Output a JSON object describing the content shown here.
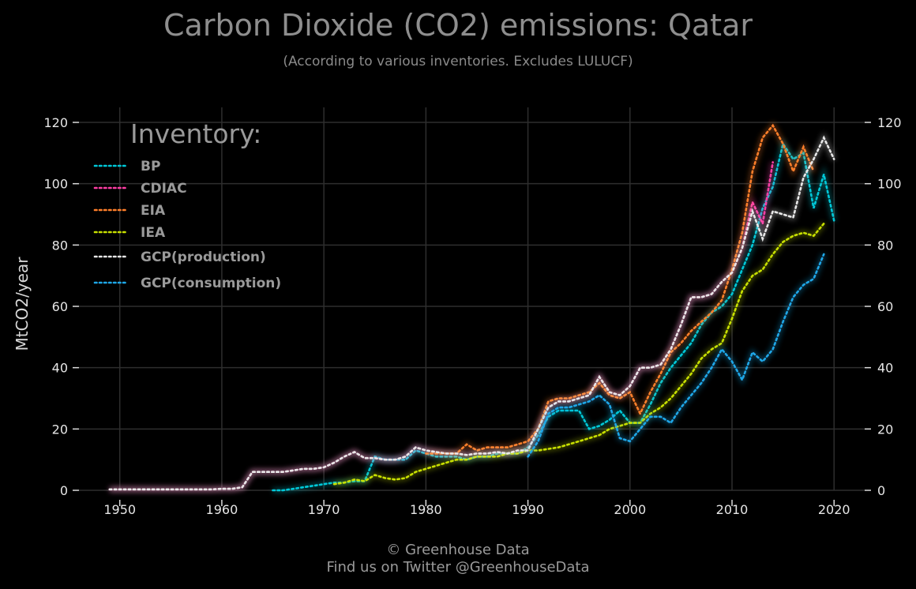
{
  "title": "Carbon Dioxide (CO2) emissions: Qatar",
  "subtitle": "(According to various inventories. Excludes LULUCF)",
  "footer_line1": "© Greenhouse Data",
  "footer_line2": "Find us on Twitter @GreenhouseData",
  "chart_data": {
    "type": "line",
    "ylabel": "MtCO2/year",
    "xlim": [
      1946,
      2023
    ],
    "ylim": [
      0,
      120
    ],
    "x_ticks": [
      1950,
      1960,
      1970,
      1980,
      1990,
      2000,
      2010,
      2020
    ],
    "y_ticks": [
      0,
      20,
      40,
      60,
      80,
      100,
      120
    ],
    "grid": true,
    "legend_title": "Inventory:",
    "legend_placement": "top-left",
    "series": [
      {
        "name": "BP",
        "color": "#00c8d8",
        "x": [
          1965,
          1966,
          1967,
          1968,
          1969,
          1970,
          1971,
          1972,
          1973,
          1974,
          1975,
          1976,
          1977,
          1978,
          1979,
          1980,
          1981,
          1982,
          1983,
          1984,
          1985,
          1986,
          1987,
          1988,
          1989,
          1990,
          1991,
          1992,
          1993,
          1994,
          1995,
          1996,
          1997,
          1998,
          1999,
          2000,
          2001,
          2002,
          2003,
          2004,
          2005,
          2006,
          2007,
          2008,
          2009,
          2010,
          2011,
          2012,
          2013,
          2014,
          2015,
          2016,
          2017,
          2018,
          2019,
          2020
        ],
        "y": [
          0,
          0,
          0.5,
          1,
          1.5,
          2,
          2.5,
          2.5,
          3,
          3,
          11,
          10,
          10,
          10,
          13,
          12,
          11,
          11,
          11,
          10,
          11,
          11,
          12,
          12,
          12,
          14,
          18,
          24,
          26,
          26,
          26,
          20,
          21,
          23,
          26,
          22,
          22,
          28,
          35,
          40,
          44,
          48,
          54,
          58,
          60,
          64,
          72,
          80,
          92,
          99,
          113,
          108,
          110,
          92,
          103,
          88
        ]
      },
      {
        "name": "CDIAC",
        "color": "#ff3ea5",
        "x": [
          1949,
          1950,
          1951,
          1952,
          1953,
          1954,
          1955,
          1956,
          1957,
          1958,
          1959,
          1960,
          1961,
          1962,
          1963,
          1964,
          1965,
          1966,
          1967,
          1968,
          1969,
          1970,
          1971,
          1972,
          1973,
          1974,
          1975,
          1976,
          1977,
          1978,
          1979,
          1980,
          1981,
          1982,
          1983,
          1984,
          1985,
          1986,
          1987,
          1988,
          1989,
          1990,
          1991,
          1992,
          1993,
          1994,
          1995,
          1996,
          1997,
          1998,
          1999,
          2000,
          2001,
          2002,
          2003,
          2004,
          2005,
          2006,
          2007,
          2008,
          2009,
          2010,
          2011,
          2012,
          2013,
          2014
        ],
        "y": [
          0.3,
          0.3,
          0.3,
          0.3,
          0.3,
          0.3,
          0.3,
          0.3,
          0.3,
          0.3,
          0.3,
          0.5,
          0.5,
          1,
          6,
          6,
          6,
          6,
          6.5,
          7,
          7,
          7.5,
          9,
          11,
          12.5,
          10.5,
          10.5,
          10,
          10,
          11,
          14,
          13,
          12.5,
          12,
          12,
          11.5,
          12,
          12,
          12.5,
          12,
          13,
          13,
          20,
          27,
          29,
          29,
          30,
          31,
          37,
          32,
          31,
          34,
          40,
          40,
          41,
          46,
          54,
          63,
          63,
          64,
          68,
          71,
          79,
          94,
          87,
          107
        ]
      },
      {
        "name": "EIA",
        "color": "#ff7f2a",
        "x": [
          1980,
          1981,
          1982,
          1983,
          1984,
          1985,
          1986,
          1987,
          1988,
          1989,
          1990,
          1991,
          1992,
          1993,
          1994,
          1995,
          1996,
          1997,
          1998,
          1999,
          2000,
          2001,
          2002,
          2003,
          2004,
          2005,
          2006,
          2007,
          2008,
          2009,
          2010,
          2011,
          2012,
          2013,
          2014,
          2015,
          2016,
          2017,
          2018
        ],
        "y": [
          12,
          12,
          12,
          12,
          15,
          13,
          14,
          14,
          14,
          15,
          16,
          20,
          29,
          30,
          30,
          31,
          32,
          35,
          31,
          30,
          32,
          25,
          32,
          38,
          45,
          48,
          52,
          55,
          58,
          62,
          72,
          84,
          104,
          115,
          119,
          113,
          104,
          112,
          104
        ]
      },
      {
        "name": "IEA",
        "color": "#c8e000",
        "x": [
          1971,
          1972,
          1973,
          1974,
          1975,
          1976,
          1977,
          1978,
          1979,
          1980,
          1981,
          1982,
          1983,
          1984,
          1985,
          1986,
          1987,
          1988,
          1989,
          1990,
          1991,
          1992,
          1993,
          1994,
          1995,
          1996,
          1997,
          1998,
          1999,
          2000,
          2001,
          2002,
          2003,
          2004,
          2005,
          2006,
          2007,
          2008,
          2009,
          2010,
          2011,
          2012,
          2013,
          2014,
          2015,
          2016,
          2017,
          2018,
          2019
        ],
        "y": [
          2,
          2.5,
          3.5,
          3,
          5,
          4,
          3.5,
          4,
          6,
          7,
          8,
          9,
          10,
          10,
          11,
          11,
          11,
          12,
          12,
          13,
          13,
          13.5,
          14,
          15,
          16,
          17,
          18,
          20,
          21,
          22,
          22,
          25,
          27,
          30,
          34,
          38,
          43,
          46,
          48,
          56,
          65,
          70,
          72,
          77,
          81,
          83,
          84,
          83,
          87
        ]
      },
      {
        "name": "GCP(production)",
        "color": "#e8e8e8",
        "x": [
          1949,
          1950,
          1951,
          1952,
          1953,
          1954,
          1955,
          1956,
          1957,
          1958,
          1959,
          1960,
          1961,
          1962,
          1963,
          1964,
          1965,
          1966,
          1967,
          1968,
          1969,
          1970,
          1971,
          1972,
          1973,
          1974,
          1975,
          1976,
          1977,
          1978,
          1979,
          1980,
          1981,
          1982,
          1983,
          1984,
          1985,
          1986,
          1987,
          1988,
          1989,
          1990,
          1991,
          1992,
          1993,
          1994,
          1995,
          1996,
          1997,
          1998,
          1999,
          2000,
          2001,
          2002,
          2003,
          2004,
          2005,
          2006,
          2007,
          2008,
          2009,
          2010,
          2011,
          2012,
          2013,
          2014,
          2015,
          2016,
          2017,
          2018,
          2019,
          2020
        ],
        "y": [
          0.3,
          0.3,
          0.3,
          0.3,
          0.3,
          0.3,
          0.3,
          0.3,
          0.3,
          0.3,
          0.3,
          0.5,
          0.5,
          1,
          6,
          6,
          6,
          6,
          6.5,
          7,
          7,
          7.5,
          9,
          11,
          12.5,
          10.5,
          10.5,
          10,
          10,
          11,
          14,
          13,
          12.5,
          12,
          12,
          11.5,
          12,
          12,
          12.5,
          12,
          13,
          13,
          20,
          27,
          29,
          29,
          30,
          31,
          37,
          32,
          31,
          34,
          40,
          40,
          41,
          46,
          54,
          63,
          63,
          64,
          68,
          71,
          79,
          91,
          82,
          91,
          90,
          89,
          102,
          108,
          115,
          108
        ]
      },
      {
        "name": "GCP(consumption)",
        "color": "#1ea7e8",
        "x": [
          1990,
          1991,
          1992,
          1993,
          1994,
          1995,
          1996,
          1997,
          1998,
          1999,
          2000,
          2001,
          2002,
          2003,
          2004,
          2005,
          2006,
          2007,
          2008,
          2009,
          2010,
          2011,
          2012,
          2013,
          2014,
          2015,
          2016,
          2017,
          2018,
          2019
        ],
        "y": [
          11,
          16,
          25,
          27,
          27,
          28,
          29,
          31,
          28,
          17,
          16,
          20,
          24,
          24,
          22,
          27,
          31,
          35,
          40,
          46,
          42,
          36,
          45,
          42,
          46,
          55,
          63,
          67,
          69,
          77
        ]
      }
    ]
  }
}
